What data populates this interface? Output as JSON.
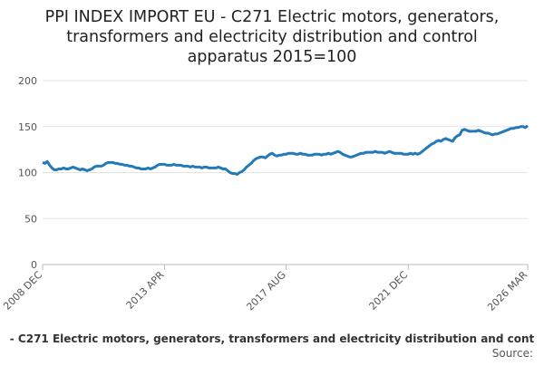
{
  "chart_data": {
    "type": "line",
    "title": [
      "PPI INDEX IMPORT EU - C271 Electric motors, generators,",
      "transformers and electricity distribution and control",
      "apparatus 2015=100"
    ],
    "caption": "- C271 Electric motors, generators, transformers and electricity distribution and cont",
    "source": "Source:",
    "categories": [
      "2008 DEC",
      null,
      null,
      null,
      null,
      null,
      null,
      null,
      null,
      null,
      null,
      null,
      null,
      null,
      null,
      null,
      null,
      null,
      null,
      null,
      null,
      null,
      null,
      null,
      null,
      null,
      null,
      null,
      null,
      null,
      null,
      null,
      null,
      null,
      null,
      null,
      null,
      null,
      null,
      null,
      null,
      null,
      null,
      null,
      null,
      null,
      null,
      null,
      null,
      null,
      null,
      null,
      "2013 APR",
      null,
      null,
      null,
      null,
      null,
      null,
      null,
      null,
      null,
      null,
      null,
      null,
      null,
      null,
      null,
      null,
      null,
      null,
      null,
      null,
      null,
      null,
      null,
      null,
      null,
      null,
      null,
      null,
      null,
      null,
      null,
      null,
      null,
      null,
      null,
      null,
      null,
      null,
      null,
      null,
      null,
      null,
      null,
      null,
      null,
      null,
      null,
      null,
      null,
      null,
      null,
      "2017 AUG",
      null,
      null,
      null,
      null,
      null,
      null,
      null,
      null,
      null,
      null,
      null,
      null,
      null,
      null,
      null,
      null,
      null,
      null,
      null,
      null,
      null,
      null,
      null,
      null,
      null,
      null,
      null,
      null,
      null,
      null,
      null,
      null,
      null,
      null,
      null,
      null,
      null,
      null,
      null,
      null,
      null,
      null,
      null,
      null,
      null,
      null,
      null,
      null,
      null,
      null,
      null,
      "2021 DEC",
      null,
      null,
      null,
      null,
      null,
      null,
      null,
      null,
      null,
      null,
      null,
      null,
      null,
      null,
      null,
      null,
      null,
      null,
      null,
      null,
      null,
      null,
      null,
      null,
      null,
      null,
      null,
      null,
      null,
      null,
      null,
      null,
      null,
      null,
      null,
      null,
      null,
      null,
      null,
      null,
      null,
      null,
      null,
      null,
      null,
      null,
      null,
      null,
      null,
      null,
      "2026 MAR"
    ],
    "values": [
      111,
      110,
      112,
      108,
      105,
      103,
      103,
      104,
      104,
      105,
      104,
      104,
      105,
      106,
      105,
      104,
      103,
      104,
      103,
      102,
      103,
      104,
      106,
      107,
      107,
      107,
      108,
      110,
      111,
      111,
      111,
      110,
      110,
      109,
      109,
      108,
      108,
      107,
      107,
      106,
      105,
      105,
      104,
      104,
      104,
      105,
      104,
      105,
      106,
      108,
      109,
      109,
      109,
      108,
      108,
      108,
      109,
      108,
      108,
      108,
      107,
      107,
      107,
      106,
      107,
      106,
      106,
      106,
      105,
      106,
      106,
      105,
      105,
      105,
      105,
      106,
      105,
      104,
      104,
      102,
      100,
      99,
      99,
      98,
      100,
      101,
      103,
      106,
      108,
      110,
      113,
      115,
      116,
      117,
      117,
      116,
      118,
      120,
      121,
      119,
      118,
      119,
      119,
      120,
      120,
      121,
      121,
      121,
      120,
      120,
      121,
      120,
      120,
      119,
      119,
      119,
      120,
      120,
      120,
      119,
      120,
      120,
      121,
      120,
      121,
      122,
      123,
      122,
      120,
      119,
      118,
      117,
      117,
      118,
      119,
      120,
      121,
      121,
      122,
      122,
      122,
      122,
      123,
      122,
      122,
      122,
      121,
      122,
      123,
      122,
      121,
      121,
      121,
      121,
      120,
      120,
      120,
      121,
      120,
      121,
      120,
      121,
      123,
      125,
      127,
      129,
      131,
      132,
      134,
      135,
      134,
      136,
      137,
      136,
      135,
      134,
      138,
      140,
      141,
      146,
      147,
      146,
      145,
      145,
      145,
      145,
      146,
      145,
      144,
      143,
      143,
      142,
      141,
      142,
      142,
      143,
      144,
      145,
      146,
      147,
      148,
      148,
      149,
      149,
      150,
      150,
      149,
      151
    ],
    "color": "#2479b8",
    "ylim": [
      0,
      200
    ],
    "yticks": [
      0,
      50,
      100,
      150,
      200
    ],
    "grid": true
  }
}
